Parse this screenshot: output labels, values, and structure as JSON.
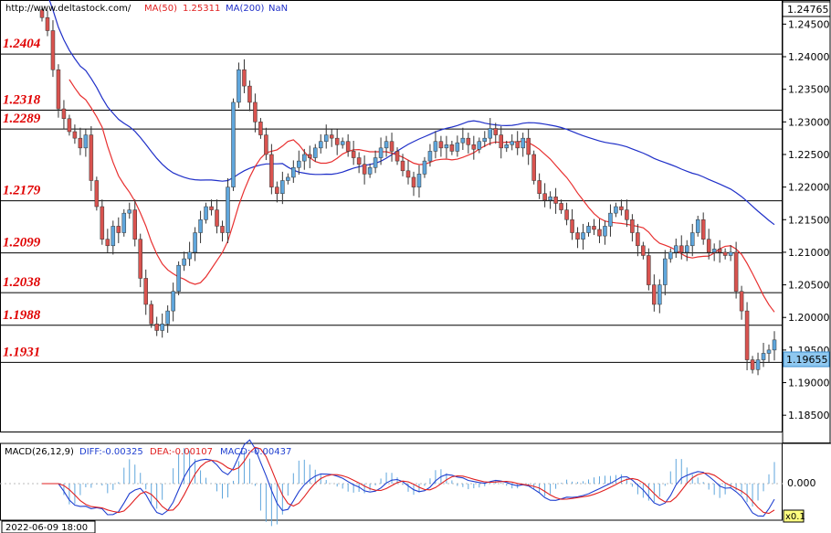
{
  "header": {
    "url": "http://www.deltastock.com/",
    "ma50_label": "MA(50)",
    "ma50_value": "1.25311",
    "ma200_label": "MA(200)",
    "ma200_value": "NaN"
  },
  "macd_header": {
    "label": "MACD(26,12,9)",
    "diff": "DIFF:-0.00325",
    "dea": "DEA:-0.00107",
    "macd": "MACD:-0.00437"
  },
  "macd_axis": {
    "zero_label": "0.000",
    "scale_badge": "x0.1"
  },
  "timestamp": "2022-06-09 18:00",
  "colors": {
    "bull": "#5fa6dc",
    "bear": "#d9534f",
    "ma50": "#e83030",
    "ma200": "#1f2fc8",
    "level_text": "#e00000",
    "diff_line": "#1f3fd0",
    "dea_line": "#e02020",
    "hist": "#5fa6dc"
  },
  "chart_data": {
    "type": "candlestick",
    "ylim": [
      1.1825,
      1.2487
    ],
    "yticks": [
      "1.24500",
      "1.24000",
      "1.23500",
      "1.23000",
      "1.22500",
      "1.22000",
      "1.21500",
      "1.21000",
      "1.20500",
      "1.20000",
      "1.19500",
      "1.19000",
      "1.18500"
    ],
    "top_price_label": "1.24765",
    "current_price_label": "1.19655",
    "current_price": 1.19655,
    "levels": [
      {
        "value": 1.2404,
        "label": "1.2404"
      },
      {
        "value": 1.2318,
        "label": "1.2318"
      },
      {
        "value": 1.2289,
        "label": "1.2289"
      },
      {
        "value": 1.2179,
        "label": "1.2179"
      },
      {
        "value": 1.2099,
        "label": "1.2099"
      },
      {
        "value": 1.2038,
        "label": "1.2038"
      },
      {
        "value": 1.1988,
        "label": "1.1988"
      },
      {
        "value": 1.1931,
        "label": "1.1931"
      }
    ],
    "candle_close": [
      1.246,
      1.244,
      1.238,
      1.232,
      1.2305,
      1.2285,
      1.2275,
      1.226,
      1.228,
      1.221,
      1.217,
      1.212,
      1.211,
      1.214,
      1.213,
      1.216,
      1.2165,
      1.212,
      1.206,
      1.202,
      1.199,
      1.198,
      1.199,
      1.201,
      1.204,
      1.208,
      1.209,
      1.21,
      1.213,
      1.215,
      1.217,
      1.2165,
      1.214,
      1.213,
      1.22,
      1.233,
      1.238,
      1.2355,
      1.233,
      1.23,
      1.228,
      1.225,
      1.22,
      1.219,
      1.221,
      1.2215,
      1.223,
      1.224,
      1.225,
      1.2245,
      1.226,
      1.227,
      1.228,
      1.2275,
      1.2265,
      1.227,
      1.2255,
      1.2245,
      1.2235,
      1.222,
      1.223,
      1.2245,
      1.226,
      1.227,
      1.2255,
      1.224,
      1.2225,
      1.2215,
      1.22,
      1.222,
      1.224,
      1.2255,
      1.227,
      1.226,
      1.2265,
      1.2255,
      1.2268,
      1.2275,
      1.2265,
      1.2258,
      1.227,
      1.2275,
      1.229,
      1.228,
      1.226,
      1.2265,
      1.227,
      1.226,
      1.2275,
      1.225,
      1.221,
      1.219,
      1.218,
      1.2185,
      1.2175,
      1.2165,
      1.215,
      1.213,
      1.212,
      1.213,
      1.214,
      1.2135,
      1.2125,
      1.214,
      1.216,
      1.217,
      1.2165,
      1.215,
      1.213,
      1.211,
      1.2095,
      1.205,
      1.202,
      1.205,
      1.209,
      1.21,
      1.211,
      1.21,
      1.211,
      1.213,
      1.215,
      1.212,
      1.21,
      1.2105,
      1.21,
      1.2095,
      1.21,
      1.204,
      1.201,
      1.1935,
      1.192,
      1.1935,
      1.1945,
      1.195,
      1.19655
    ]
  }
}
